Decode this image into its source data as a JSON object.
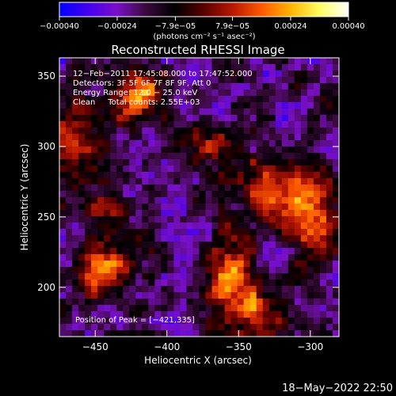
{
  "chart_data": {
    "type": "heatmap",
    "title": "Reconstructed RHESSI Image",
    "xlabel": "Heliocentric X (arcsec)",
    "ylabel": "Heliocentric Y (arcsec)",
    "xlim": [
      -475,
      -280
    ],
    "ylim": [
      165,
      363
    ],
    "x_ticks": [
      -450,
      -400,
      -350,
      -300
    ],
    "x_tick_labels": [
      "−450",
      "−400",
      "−350",
      "−300"
    ],
    "y_ticks": [
      200,
      250,
      300,
      350
    ],
    "y_tick_labels": [
      "200",
      "250",
      "300",
      "350"
    ],
    "colorbar": {
      "range": [
        -0.0004,
        0.0004
      ],
      "ticks": [
        -0.0004,
        -0.00024,
        -7.9e-05,
        7.9e-05,
        0.00024,
        0.0004
      ],
      "tick_labels": [
        "−0.00040",
        "−0.00024",
        "−7.9e−05",
        "7.9e−05",
        "0.00024",
        "0.00040"
      ],
      "unit_label": "(photons cm⁻² s⁻¹ asec⁻²)",
      "colors": [
        "#0000ff",
        "#4400ee",
        "#7a10c8",
        "#3a0a3a",
        "#000000",
        "#5a0000",
        "#b81800",
        "#ff5a00",
        "#ffb400",
        "#ffff60",
        "#ffffff"
      ]
    },
    "annotations": [
      "12−Feb−2011 17:45:08.000 to 17:47:52.000",
      "Detectors: 3F 5F 6F 7F 8F 9F, Att 0",
      "Energy Range: 12.0 − 25.0 keV",
      "Clean     Total counts: 2.55E+03"
    ],
    "peak_label": "Position of Peak = [−421,335]",
    "peak_position": [
      -421,
      335
    ],
    "sources": [
      {
        "x": -421,
        "y": 335,
        "peak": 0.0004,
        "sx": 14,
        "sy": 12
      },
      {
        "x": -355,
        "y": 205,
        "peak": 0.00038,
        "sx": 11,
        "sy": 22
      },
      {
        "x": -445,
        "y": 212,
        "peak": 0.00034,
        "sx": 13,
        "sy": 14
      },
      {
        "x": -468,
        "y": 300,
        "peak": 0.0003,
        "sx": 10,
        "sy": 22
      },
      {
        "x": -322,
        "y": 270,
        "peak": 0.00033,
        "sx": 22,
        "sy": 16
      },
      {
        "x": -300,
        "y": 245,
        "peak": 0.00028,
        "sx": 12,
        "sy": 16
      },
      {
        "x": -370,
        "y": 300,
        "peak": 0.00025,
        "sx": 10,
        "sy": 9
      },
      {
        "x": -445,
        "y": 256,
        "peak": 0.0002,
        "sx": 10,
        "sy": 10
      },
      {
        "x": -335,
        "y": 180,
        "peak": 0.00026,
        "sx": 10,
        "sy": 14
      }
    ],
    "background_level": -0.00018,
    "noise_amplitude": 0.0001,
    "grid": false
  },
  "footer": {
    "timestamp": "18−May−2022 22:50"
  }
}
